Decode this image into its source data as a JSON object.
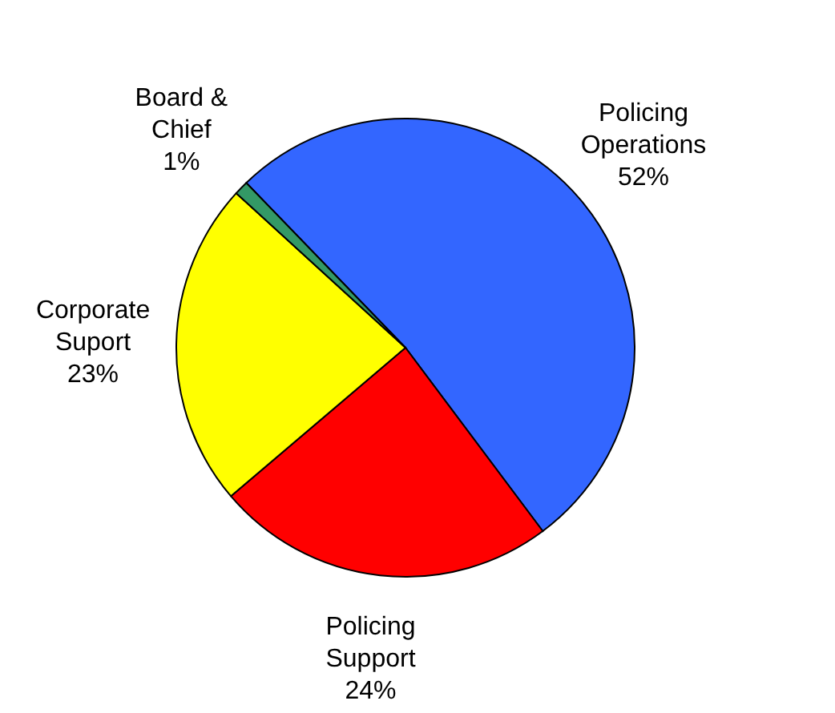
{
  "chart_data": {
    "type": "pie",
    "categories": [
      "Policing Operations",
      "Policing Support",
      "Corporate Suport",
      "Board & Chief"
    ],
    "values": [
      52,
      24,
      23,
      1
    ],
    "colors": [
      "#3366ff",
      "#ff0000",
      "#ffff00",
      "#339966"
    ],
    "value_labels": [
      "52%",
      "24%",
      "23%",
      "1%"
    ]
  }
}
